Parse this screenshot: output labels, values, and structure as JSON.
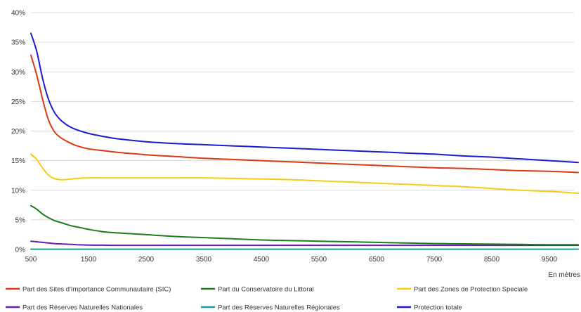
{
  "chart_data": {
    "type": "line",
    "title": "",
    "xlabel": "En mètres",
    "ylabel": "",
    "xlim": [
      500,
      10000
    ],
    "ylim": [
      0,
      40
    ],
    "grid": true,
    "legend_position": "bottom",
    "x_ticks": [
      "500",
      "1500",
      "2500",
      "3500",
      "4500",
      "5500",
      "6500",
      "7500",
      "8500",
      "9500"
    ],
    "y_ticks": [
      "0%",
      "5%",
      "10%",
      "15%",
      "20%",
      "25%",
      "30%",
      "35%",
      "40%"
    ],
    "x": [
      500,
      600,
      700,
      800,
      900,
      1000,
      1100,
      1200,
      1300,
      1500,
      1750,
      2000,
      2500,
      3000,
      3500,
      4000,
      4500,
      5000,
      5500,
      6000,
      6500,
      7000,
      7500,
      8000,
      8500,
      9000,
      9500,
      10000
    ],
    "series": [
      {
        "name": "Part des Sites d'Importance Communautaire (SIC)",
        "color": "#dc3912",
        "values": [
          32.8,
          29.5,
          25.5,
          22.0,
          20.0,
          19.0,
          18.4,
          17.9,
          17.5,
          17.0,
          16.7,
          16.4,
          16.0,
          15.7,
          15.4,
          15.2,
          15.0,
          14.8,
          14.6,
          14.4,
          14.2,
          14.0,
          13.8,
          13.7,
          13.5,
          13.3,
          13.2,
          13.0
        ]
      },
      {
        "name": "Part du Conservatoire du Littoral",
        "color": "#1e7a1e",
        "values": [
          7.4,
          6.8,
          6.0,
          5.4,
          4.9,
          4.6,
          4.3,
          4.0,
          3.8,
          3.4,
          3.0,
          2.8,
          2.5,
          2.2,
          2.0,
          1.8,
          1.6,
          1.5,
          1.4,
          1.3,
          1.2,
          1.1,
          1.0,
          0.95,
          0.9,
          0.85,
          0.8,
          0.8
        ]
      },
      {
        "name": "Part des Zones de Protection Speciale",
        "color": "#f5cc15",
        "values": [
          16.1,
          15.2,
          13.8,
          12.6,
          12.0,
          11.8,
          11.8,
          11.9,
          12.0,
          12.1,
          12.1,
          12.1,
          12.1,
          12.1,
          12.1,
          12.0,
          11.9,
          11.8,
          11.6,
          11.4,
          11.2,
          11.0,
          10.8,
          10.6,
          10.3,
          10.0,
          9.8,
          9.5
        ]
      },
      {
        "name": "Part des Réserves Naturelles Nationales",
        "color": "#6a1bb0",
        "values": [
          1.4,
          1.3,
          1.2,
          1.1,
          1.0,
          0.95,
          0.9,
          0.85,
          0.8,
          0.75,
          0.72,
          0.7,
          0.7,
          0.7,
          0.7,
          0.7,
          0.7,
          0.7,
          0.7,
          0.7,
          0.7,
          0.7,
          0.7,
          0.7,
          0.7,
          0.7,
          0.7,
          0.7
        ]
      },
      {
        "name": "Part des Réserves Naturelles Régionales",
        "color": "#1b9e9e",
        "values": [
          0.05,
          0.05,
          0.05,
          0.05,
          0.05,
          0.05,
          0.05,
          0.05,
          0.05,
          0.05,
          0.05,
          0.05,
          0.05,
          0.05,
          0.05,
          0.05,
          0.05,
          0.05,
          0.05,
          0.05,
          0.05,
          0.05,
          0.05,
          0.05,
          0.05,
          0.05,
          0.05,
          0.05
        ]
      },
      {
        "name": "Protection totale",
        "color": "#1a1ad4",
        "values": [
          36.5,
          33.5,
          29.0,
          25.5,
          23.3,
          22.0,
          21.2,
          20.6,
          20.2,
          19.6,
          19.1,
          18.7,
          18.2,
          17.9,
          17.7,
          17.5,
          17.3,
          17.1,
          16.9,
          16.7,
          16.5,
          16.3,
          16.1,
          15.8,
          15.6,
          15.3,
          15.0,
          14.7
        ]
      }
    ]
  }
}
